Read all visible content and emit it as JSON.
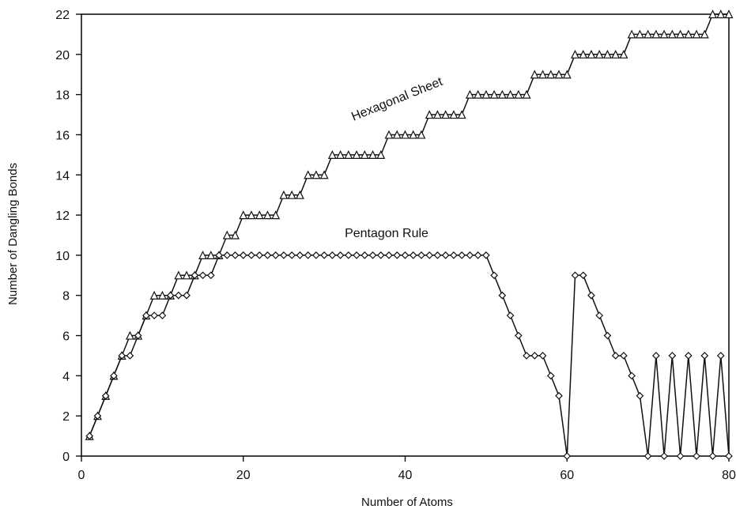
{
  "chart_data": {
    "type": "line",
    "title": "",
    "xlabel": "Number of Atoms",
    "ylabel": "Number of Dangling Bonds",
    "xlim": [
      0,
      80
    ],
    "ylim": [
      0,
      22
    ],
    "x_ticks": [
      "0",
      "20",
      "40",
      "60",
      "80"
    ],
    "y_ticks": [
      "0",
      "2",
      "4",
      "6",
      "8",
      "10",
      "12",
      "14",
      "16",
      "18",
      "20",
      "22"
    ],
    "grid": false,
    "x": [
      1,
      2,
      3,
      4,
      5,
      6,
      7,
      8,
      9,
      10,
      11,
      12,
      13,
      14,
      15,
      16,
      17,
      18,
      19,
      20,
      21,
      22,
      23,
      24,
      25,
      26,
      27,
      28,
      29,
      30,
      31,
      32,
      33,
      34,
      35,
      36,
      37,
      38,
      39,
      40,
      41,
      42,
      43,
      44,
      45,
      46,
      47,
      48,
      49,
      50,
      51,
      52,
      53,
      54,
      55,
      56,
      57,
      58,
      59,
      60,
      61,
      62,
      63,
      64,
      65,
      66,
      67,
      68,
      69,
      70,
      71,
      72,
      73,
      74,
      75,
      76,
      77,
      78,
      79,
      80
    ],
    "annotations": [
      {
        "text": "Hexagonal Sheet",
        "series": "hexagonal"
      },
      {
        "text": "Pentagon Rule",
        "series": "pentagon"
      }
    ],
    "series": [
      {
        "key": "hexagonal",
        "marker": "triangle",
        "values": [
          1,
          2,
          3,
          4,
          5,
          6,
          6,
          7,
          8,
          8,
          8,
          9,
          9,
          9,
          10,
          10,
          10,
          11,
          11,
          12,
          12,
          12,
          12,
          12,
          13,
          13,
          13,
          14,
          14,
          14,
          15,
          15,
          15,
          15,
          15,
          15,
          15,
          16,
          16,
          16,
          16,
          16,
          17,
          17,
          17,
          17,
          17,
          18,
          18,
          18,
          18,
          18,
          18,
          18,
          18,
          19,
          19,
          19,
          19,
          19,
          20,
          20,
          20,
          20,
          20,
          20,
          20,
          21,
          21,
          21,
          21,
          21,
          21,
          21,
          21,
          21,
          21,
          22,
          22,
          22
        ]
      },
      {
        "key": "pentagon",
        "marker": "diamond",
        "values": [
          1,
          2,
          3,
          4,
          5,
          5,
          6,
          7,
          7,
          7,
          8,
          8,
          8,
          9,
          9,
          9,
          10,
          10,
          10,
          10,
          10,
          10,
          10,
          10,
          10,
          10,
          10,
          10,
          10,
          10,
          10,
          10,
          10,
          10,
          10,
          10,
          10,
          10,
          10,
          10,
          10,
          10,
          10,
          10,
          10,
          10,
          10,
          10,
          10,
          10,
          9,
          8,
          7,
          6,
          5,
          5,
          5,
          4,
          3,
          0,
          9,
          9,
          8,
          7,
          6,
          5,
          5,
          4,
          3,
          0,
          5,
          0,
          5,
          0,
          5,
          0,
          5,
          0,
          5,
          0
        ]
      }
    ]
  }
}
